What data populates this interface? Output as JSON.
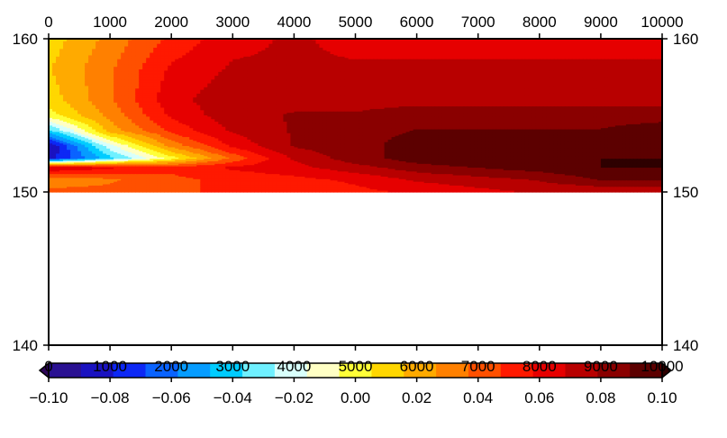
{
  "chart_data": {
    "type": "heatmap",
    "subtype": "filled-contour",
    "x_axis": {
      "range": [
        0,
        10000
      ],
      "ticks": [
        0,
        1000,
        2000,
        3000,
        4000,
        5000,
        6000,
        7000,
        8000,
        9000,
        10000
      ],
      "tick_labels": [
        "0",
        "1000",
        "2000",
        "3000",
        "4000",
        "5000",
        "6000",
        "7000",
        "8000",
        "9000",
        "10000"
      ],
      "label": ""
    },
    "y_axis": {
      "range": [
        140,
        160
      ],
      "ticks": [
        140,
        150,
        160
      ],
      "tick_labels": [
        "140",
        "150",
        "160"
      ],
      "label": ""
    },
    "colorbar": {
      "range": [
        -0.1,
        0.1
      ],
      "levels": [
        -0.1,
        -0.09,
        -0.08,
        -0.07,
        -0.06,
        -0.05,
        -0.04,
        -0.03,
        -0.02,
        -0.01,
        0.0,
        0.01,
        0.02,
        0.03,
        0.04,
        0.05,
        0.06,
        0.07,
        0.08,
        0.09,
        0.1
      ],
      "colors": [
        "#2e0658",
        "#2a1192",
        "#1a12c0",
        "#0d28f5",
        "#0a63ff",
        "#069cff",
        "#00ccff",
        "#6ff0ff",
        "#d8fffb",
        "#ffffc4",
        "#ffff38",
        "#ffd700",
        "#ffaa00",
        "#ff8000",
        "#ff5000",
        "#ff1900",
        "#e60000",
        "#b80000",
        "#8a0000",
        "#5c0000",
        "#2e0000"
      ],
      "extend": "both",
      "tick_labels": [
        "−0.10",
        "−0.08",
        "−0.06",
        "−0.04",
        "−0.02",
        "0.00",
        "0.02",
        "0.04",
        "0.06",
        "0.08",
        "0.10"
      ],
      "overlay_labels": [
        "0",
        "1000",
        "2000",
        "3000",
        "4000",
        "5000",
        "6000",
        "7000",
        "8000",
        "9000",
        "10000"
      ]
    },
    "grid": false,
    "legend": "colorbar-bottom",
    "colormap_note": "jet-like cold-to-hot",
    "field_columns": [
      0,
      1000,
      2000,
      3000,
      4000,
      5000,
      6000,
      7000,
      8000,
      9000,
      10000
    ],
    "field_rows": [
      {
        "y": 160,
        "values": [
          0.01,
          0.03,
          0.05,
          0.065,
          0.07,
          0.065,
          0.065,
          0.065,
          0.065,
          0.065,
          0.065
        ]
      },
      {
        "y": 158,
        "values": [
          0.015,
          0.035,
          0.06,
          0.07,
          0.07,
          0.07,
          0.07,
          0.07,
          0.07,
          0.07,
          0.07
        ]
      },
      {
        "y": 156,
        "values": [
          0.01,
          0.035,
          0.065,
          0.075,
          0.075,
          0.075,
          0.075,
          0.075,
          0.075,
          0.075,
          0.075
        ]
      },
      {
        "y": 155,
        "values": [
          0.0,
          0.03,
          0.06,
          0.075,
          0.08,
          0.08,
          0.085,
          0.085,
          0.085,
          0.085,
          0.085
        ]
      },
      {
        "y": 154,
        "values": [
          -0.04,
          0.02,
          0.05,
          0.07,
          0.08,
          0.085,
          0.09,
          0.09,
          0.09,
          0.09,
          0.095
        ]
      },
      {
        "y": 153,
        "values": [
          -0.09,
          -0.02,
          0.03,
          0.06,
          0.08,
          0.085,
          0.095,
          0.095,
          0.095,
          0.095,
          0.1
        ]
      },
      {
        "y": 152.2,
        "values": [
          -0.085,
          -0.04,
          0.0,
          0.04,
          0.07,
          0.085,
          0.095,
          0.1,
          0.1,
          0.1,
          0.1
        ]
      },
      {
        "y": 151.6,
        "values": [
          0.07,
          0.06,
          0.05,
          0.06,
          0.065,
          0.075,
          0.085,
          0.09,
          0.095,
          0.1,
          0.1
        ]
      },
      {
        "y": 150.8,
        "values": [
          0.03,
          0.035,
          0.045,
          0.05,
          0.055,
          0.06,
          0.07,
          0.075,
          0.08,
          0.09,
          0.09
        ]
      },
      {
        "y": 150,
        "values": [
          0.04,
          0.04,
          0.045,
          0.05,
          0.05,
          0.055,
          0.06,
          0.065,
          0.07,
          0.07,
          0.07
        ]
      }
    ],
    "blank_below_y": 150
  }
}
